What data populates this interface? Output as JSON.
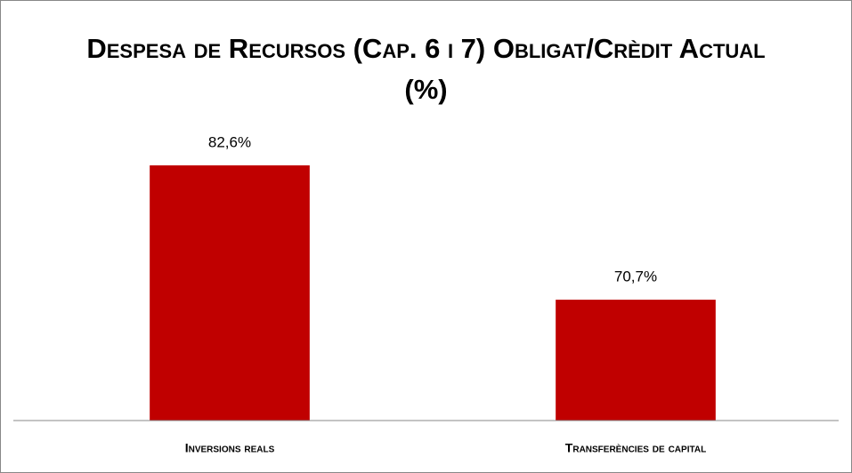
{
  "chart_data": {
    "type": "bar",
    "title": "Despesa de Recursos (Cap. 6 i 7) Obligat/Crèdit Actual (%)",
    "categories": [
      "Inversions reals",
      "Transferències de capital"
    ],
    "values": [
      82.6,
      70.7
    ],
    "value_labels": [
      "82,6%",
      "70,7%"
    ],
    "color": "#c00000",
    "ylim": [
      60,
      90
    ]
  }
}
